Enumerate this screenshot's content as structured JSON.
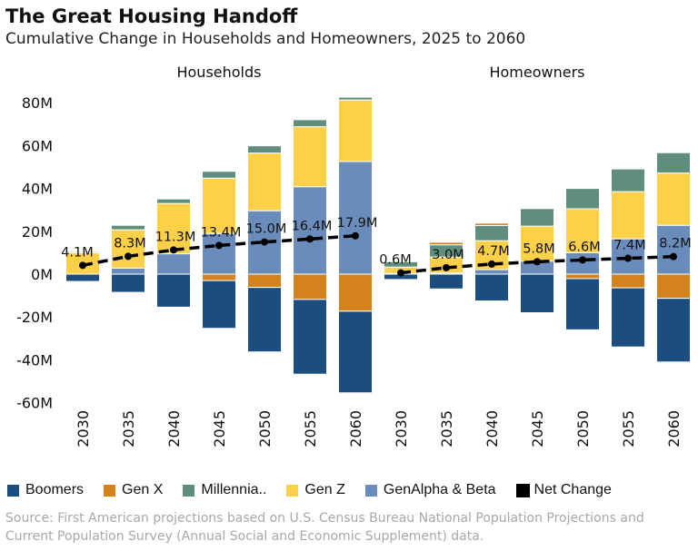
{
  "title": "The Great Housing Handoff",
  "subtitle": "Cumulative Change in Households and Homeowners, 2025 to 2060",
  "source": "Source: First American projections based on U.S. Census Bureau National Population Projections and Current Population Survey (Annual Social and Economic Supplement) data.",
  "legend": [
    {
      "label": "Boomers",
      "color": "#1b4d7e"
    },
    {
      "label": "Gen X",
      "color": "#d5821d"
    },
    {
      "label": "Millennia..",
      "color": "#5f8f7c"
    },
    {
      "label": "Gen Z",
      "color": "#fdd04a"
    },
    {
      "label": "GenAlpha & Beta",
      "color": "#6a8cba"
    },
    {
      "label": "Net Change",
      "color": "#000000"
    }
  ],
  "chart_data": [
    {
      "type": "bar",
      "stacked": true,
      "title": "Households",
      "categories": [
        "2030",
        "2035",
        "2040",
        "2045",
        "2050",
        "2055",
        "2060"
      ],
      "ylim": [
        -60,
        85
      ],
      "yticks": [
        -60,
        -40,
        -20,
        0,
        20,
        40,
        60,
        80
      ],
      "ytick_labels": [
        "-60M",
        "-40M",
        "-20M",
        "0M",
        "20M",
        "40M",
        "60M",
        "80M"
      ],
      "series": [
        {
          "name": "Boomers",
          "values": [
            -3.4,
            -8.5,
            -15.4,
            -22.3,
            -30.1,
            -34.9,
            -38.1
          ]
        },
        {
          "name": "Gen X",
          "values": [
            0,
            0,
            0,
            -3.0,
            -6.2,
            -11.8,
            -17.3
          ]
        },
        {
          "name": "Millennia..",
          "values": [
            0.5,
            2.1,
            2.1,
            3.2,
            3.4,
            3.3,
            1.3
          ]
        },
        {
          "name": "Gen Z",
          "values": [
            10.0,
            17.9,
            23.5,
            25.8,
            26.9,
            28.0,
            28.7
          ]
        },
        {
          "name": "GenAlpha & Beta",
          "values": [
            0,
            2.8,
            9.5,
            19.0,
            29.6,
            40.8,
            52.6
          ]
        }
      ],
      "net_change": {
        "name": "Net Change",
        "values": [
          4.1,
          8.3,
          11.3,
          13.4,
          15.0,
          16.4,
          17.9
        ],
        "labels": [
          "4.1M",
          "8.3M",
          "11.3M",
          "13.4M",
          "15.0M",
          "16.4M",
          "17.9M"
        ]
      }
    },
    {
      "type": "bar",
      "stacked": true,
      "title": "Homeowners",
      "categories": [
        "2030",
        "2035",
        "2040",
        "2045",
        "2050",
        "2055",
        "2060"
      ],
      "ylim": [
        -60,
        85
      ],
      "series": [
        {
          "name": "Boomers",
          "values": [
            -2.5,
            -6.9,
            -12.5,
            -18.0,
            -23.9,
            -27.6,
            -29.7
          ]
        },
        {
          "name": "Gen X",
          "values": [
            0,
            1.2,
            1.1,
            0,
            -2.1,
            -6.4,
            -11.3
          ]
        },
        {
          "name": "Millennia..",
          "values": [
            2.5,
            5.7,
            7.1,
            8.2,
            9.5,
            10.6,
            9.5
          ]
        },
        {
          "name": "Gen Z",
          "values": [
            3.0,
            7.5,
            13.5,
            16.3,
            20.5,
            22.0,
            24.4
          ]
        },
        {
          "name": "GenAlpha & Beta",
          "values": [
            0.3,
            0.5,
            2.1,
            6.1,
            10.0,
            16.5,
            22.8
          ]
        }
      ],
      "net_change": {
        "name": "Net Change",
        "values": [
          0.6,
          3.0,
          4.7,
          5.8,
          6.6,
          7.4,
          8.2
        ],
        "labels": [
          "0.6M",
          "3.0M",
          "4.7M",
          "5.8M",
          "6.6M",
          "7.4M",
          "8.2M"
        ]
      }
    }
  ]
}
